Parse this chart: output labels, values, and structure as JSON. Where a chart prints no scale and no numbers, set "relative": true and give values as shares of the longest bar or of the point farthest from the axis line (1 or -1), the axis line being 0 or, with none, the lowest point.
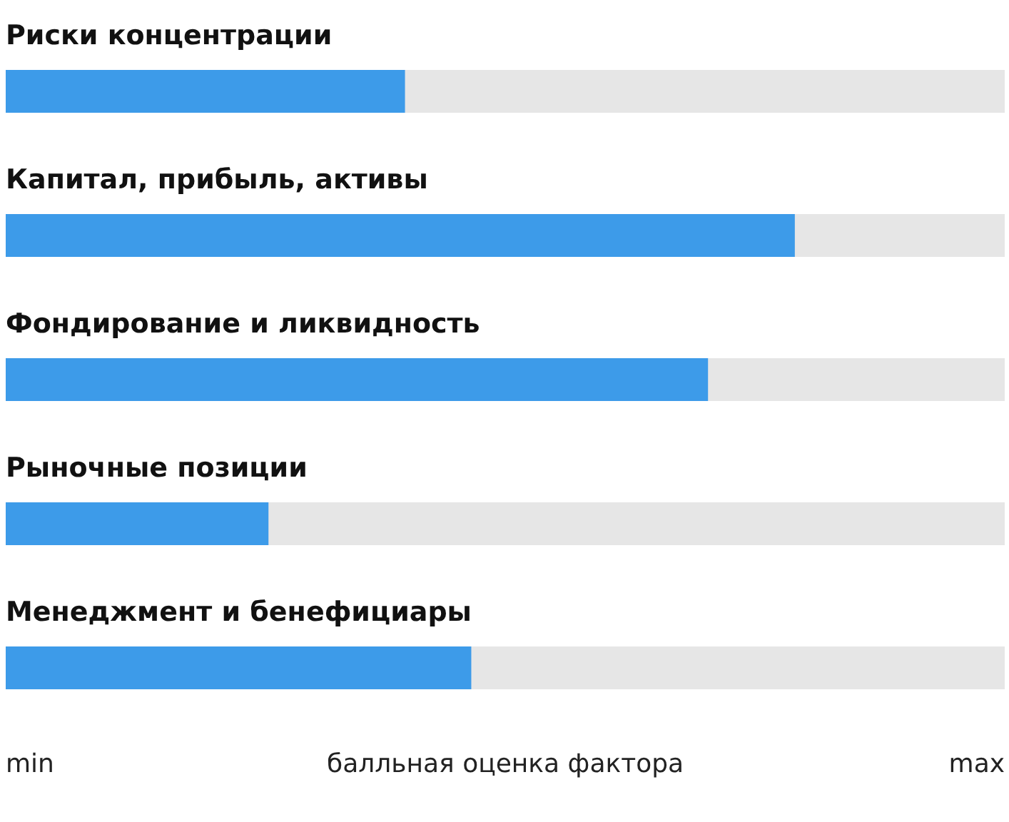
{
  "chart_data": {
    "type": "bar",
    "orientation": "horizontal",
    "relative": true,
    "categories": [
      "Риски концентрации",
      "Капитал, прибыль, активы",
      "Фондирование и ликвидность",
      "Рыночные позиции",
      "Менеджмент и бенефициары"
    ],
    "values": [
      0.506,
      1,
      0.89,
      0.333,
      0.59
    ],
    "color": "#3d9be9",
    "xlabel": "балльная оценка фактора",
    "annotations": [
      "min",
      "max"
    ],
    "bands": [
      {
        "axis": "x",
        "from": 0,
        "to": 1.266,
        "color": "#e6e6e6"
      }
    ]
  }
}
